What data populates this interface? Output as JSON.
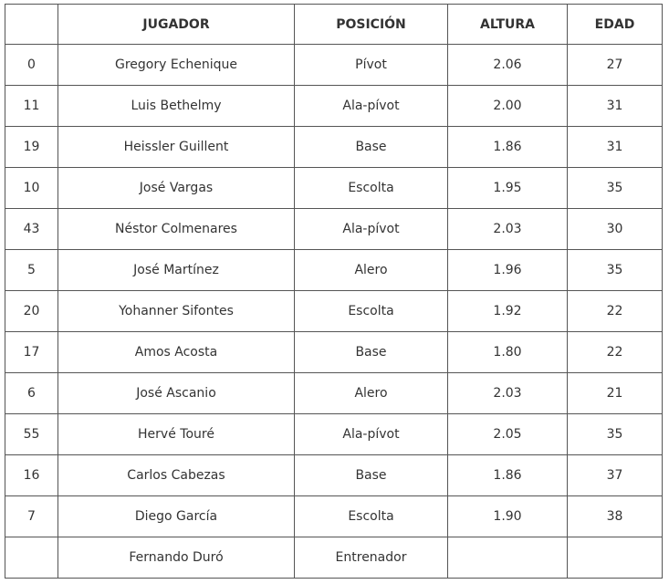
{
  "table": {
    "headers": [
      "",
      "JUGADOR",
      "POSICIÓN",
      "ALTURA",
      "EDAD"
    ],
    "rows": [
      [
        "0",
        "Gregory Echenique",
        "Pívot",
        "2.06",
        "27"
      ],
      [
        "11",
        "Luis Bethelmy",
        "Ala-pívot",
        "2.00",
        "31"
      ],
      [
        "19",
        "Heissler Guillent",
        "Base",
        "1.86",
        "31"
      ],
      [
        "10",
        "José Vargas",
        "Escolta",
        "1.95",
        "35"
      ],
      [
        "43",
        "Néstor Colmenares",
        "Ala-pívot",
        "2.03",
        "30"
      ],
      [
        "5",
        "José Martínez",
        "Alero",
        "1.96",
        "35"
      ],
      [
        "20",
        "Yohanner Sifontes",
        "Escolta",
        "1.92",
        "22"
      ],
      [
        "17",
        "Amos Acosta",
        "Base",
        "1.80",
        "22"
      ],
      [
        "6",
        "José Ascanio",
        "Alero",
        "2.03",
        "21"
      ],
      [
        "55",
        "Hervé Touré",
        "Ala-pívot",
        "2.05",
        "35"
      ],
      [
        "16",
        "Carlos Cabezas",
        "Base",
        "1.86",
        "37"
      ],
      [
        "7",
        "Diego García",
        "Escolta",
        "1.90",
        "38"
      ],
      [
        "",
        "Fernando Duró",
        "Entrenador",
        "",
        ""
      ]
    ]
  }
}
